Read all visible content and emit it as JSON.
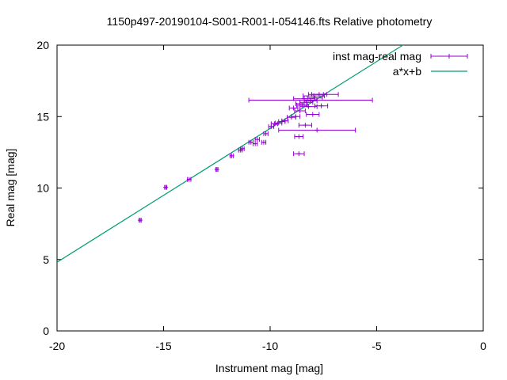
{
  "chart_data": {
    "type": "scatter",
    "title": "1150p497-20190104-S001-R001-I-054146.fts Relative photometry",
    "xlabel": "Instrument mag [mag]",
    "ylabel": "Real mag [mag]",
    "xlim": [
      -20,
      0
    ],
    "ylim": [
      0,
      20
    ],
    "xticks": [
      -20,
      -15,
      -10,
      -5,
      0
    ],
    "xtick_labels": [
      "-20",
      "-15",
      "-10",
      "-5",
      "0"
    ],
    "yticks": [
      0,
      5,
      10,
      15,
      20
    ],
    "ytick_labels": [
      "0",
      "5",
      "10",
      "15",
      "20"
    ],
    "grid": false,
    "legend_position": "top-right",
    "series": [
      {
        "name": "inst mag-real mag",
        "color": "#9400d3",
        "style": "xerrorbars",
        "points": [
          {
            "x": -16.1,
            "y": 7.75,
            "xerr": 0.05
          },
          {
            "x": -14.9,
            "y": 10.05,
            "xerr": 0.05
          },
          {
            "x": -13.8,
            "y": 10.6,
            "xerr": 0.08
          },
          {
            "x": -12.5,
            "y": 11.3,
            "xerr": 0.05
          },
          {
            "x": -11.8,
            "y": 12.25,
            "xerr": 0.08
          },
          {
            "x": -11.4,
            "y": 12.65,
            "xerr": 0.08
          },
          {
            "x": -11.3,
            "y": 12.75,
            "xerr": 0.08
          },
          {
            "x": -10.9,
            "y": 13.2,
            "xerr": 0.1
          },
          {
            "x": -10.7,
            "y": 13.1,
            "xerr": 0.1
          },
          {
            "x": -10.6,
            "y": 13.4,
            "xerr": 0.1
          },
          {
            "x": -10.3,
            "y": 13.2,
            "xerr": 0.1
          },
          {
            "x": -10.2,
            "y": 13.8,
            "xerr": 0.1
          },
          {
            "x": -9.95,
            "y": 14.3,
            "xerr": 0.12
          },
          {
            "x": -9.8,
            "y": 14.5,
            "xerr": 0.15
          },
          {
            "x": -9.6,
            "y": 14.55,
            "xerr": 0.15
          },
          {
            "x": -9.45,
            "y": 14.65,
            "xerr": 0.15
          },
          {
            "x": -9.3,
            "y": 14.7,
            "xerr": 0.15
          },
          {
            "x": -9.0,
            "y": 14.95,
            "xerr": 0.2
          },
          {
            "x": -8.8,
            "y": 15.0,
            "xerr": 0.2
          },
          {
            "x": -8.6,
            "y": 15.4,
            "xerr": 0.25
          },
          {
            "x": -8.5,
            "y": 15.8,
            "xerr": 0.25
          },
          {
            "x": -8.3,
            "y": 16.0,
            "xerr": 0.3
          },
          {
            "x": -8.1,
            "y": 16.1,
            "xerr": 0.3
          },
          {
            "x": -7.9,
            "y": 16.3,
            "xerr": 0.35
          },
          {
            "x": -7.7,
            "y": 16.55,
            "xerr": 0.35
          },
          {
            "x": -8.2,
            "y": 15.7,
            "xerr": 0.4
          },
          {
            "x": -7.6,
            "y": 15.75,
            "xerr": 0.3
          },
          {
            "x": -8.0,
            "y": 15.15,
            "xerr": 0.3
          },
          {
            "x": -8.35,
            "y": 14.4,
            "xerr": 0.3
          },
          {
            "x": -7.8,
            "y": 14.05,
            "xerr": 1.8
          },
          {
            "x": -8.65,
            "y": 13.6,
            "xerr": 0.2
          },
          {
            "x": -8.65,
            "y": 12.4,
            "xerr": 0.25
          },
          {
            "x": -8.1,
            "y": 16.15,
            "xerr": 2.9
          },
          {
            "x": -7.5,
            "y": 16.55,
            "xerr": 0.7
          },
          {
            "x": -7.95,
            "y": 16.45,
            "xerr": 0.5
          },
          {
            "x": -8.4,
            "y": 16.25,
            "xerr": 0.5
          },
          {
            "x": -8.6,
            "y": 15.9,
            "xerr": 0.2
          },
          {
            "x": -8.9,
            "y": 15.6,
            "xerr": 0.2
          }
        ]
      },
      {
        "name": "a*x+b",
        "color": "#009e73",
        "style": "line",
        "slope": 0.936,
        "intercept": 23.53
      }
    ]
  }
}
